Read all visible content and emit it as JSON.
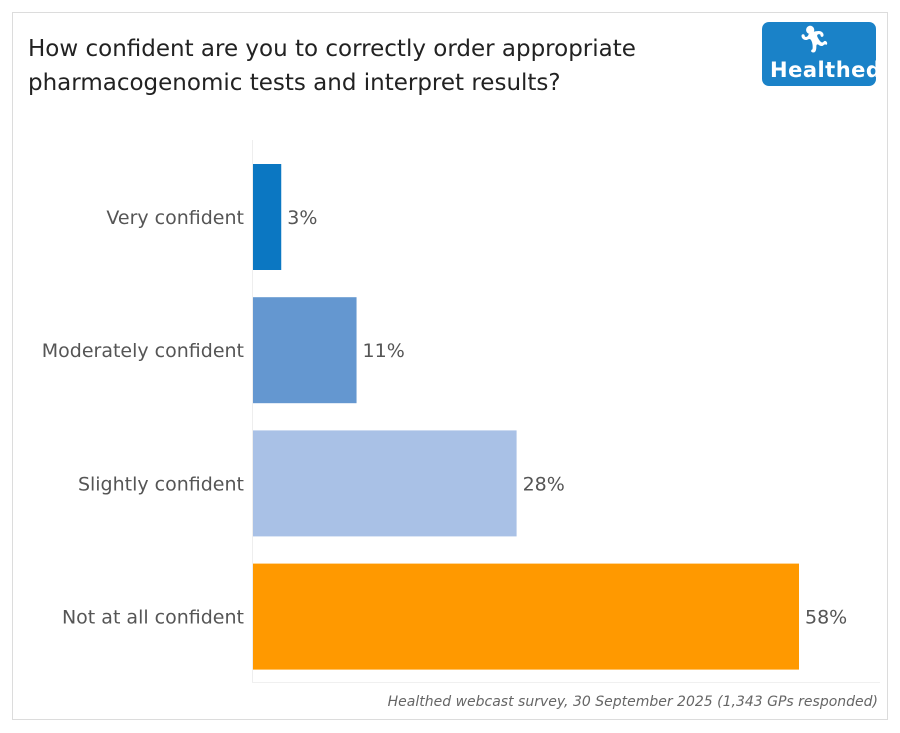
{
  "header": {
    "title": "How confident are you to correctly order appropriate pharmacogenomic tests and interpret results?",
    "logo_text": "Healthed"
  },
  "footer": {
    "source": "Healthed webcast survey, 30 September 2025 (1,343 GPs responded)"
  },
  "chart_data": {
    "type": "bar",
    "orientation": "horizontal",
    "title": "How confident are you to correctly order appropriate pharmacogenomic tests and interpret results?",
    "categories": [
      "Very confident",
      "Moderately confident",
      "Slightly confident",
      "Not at all confident"
    ],
    "values": [
      3,
      11,
      28,
      58
    ],
    "labels": [
      "3%",
      "11%",
      "28%",
      "58%"
    ],
    "colors": [
      "#0b77c2",
      "#6497d0",
      "#a9c1e6",
      "#ff9900"
    ],
    "xlim": [
      0,
      58
    ],
    "grid": false
  }
}
